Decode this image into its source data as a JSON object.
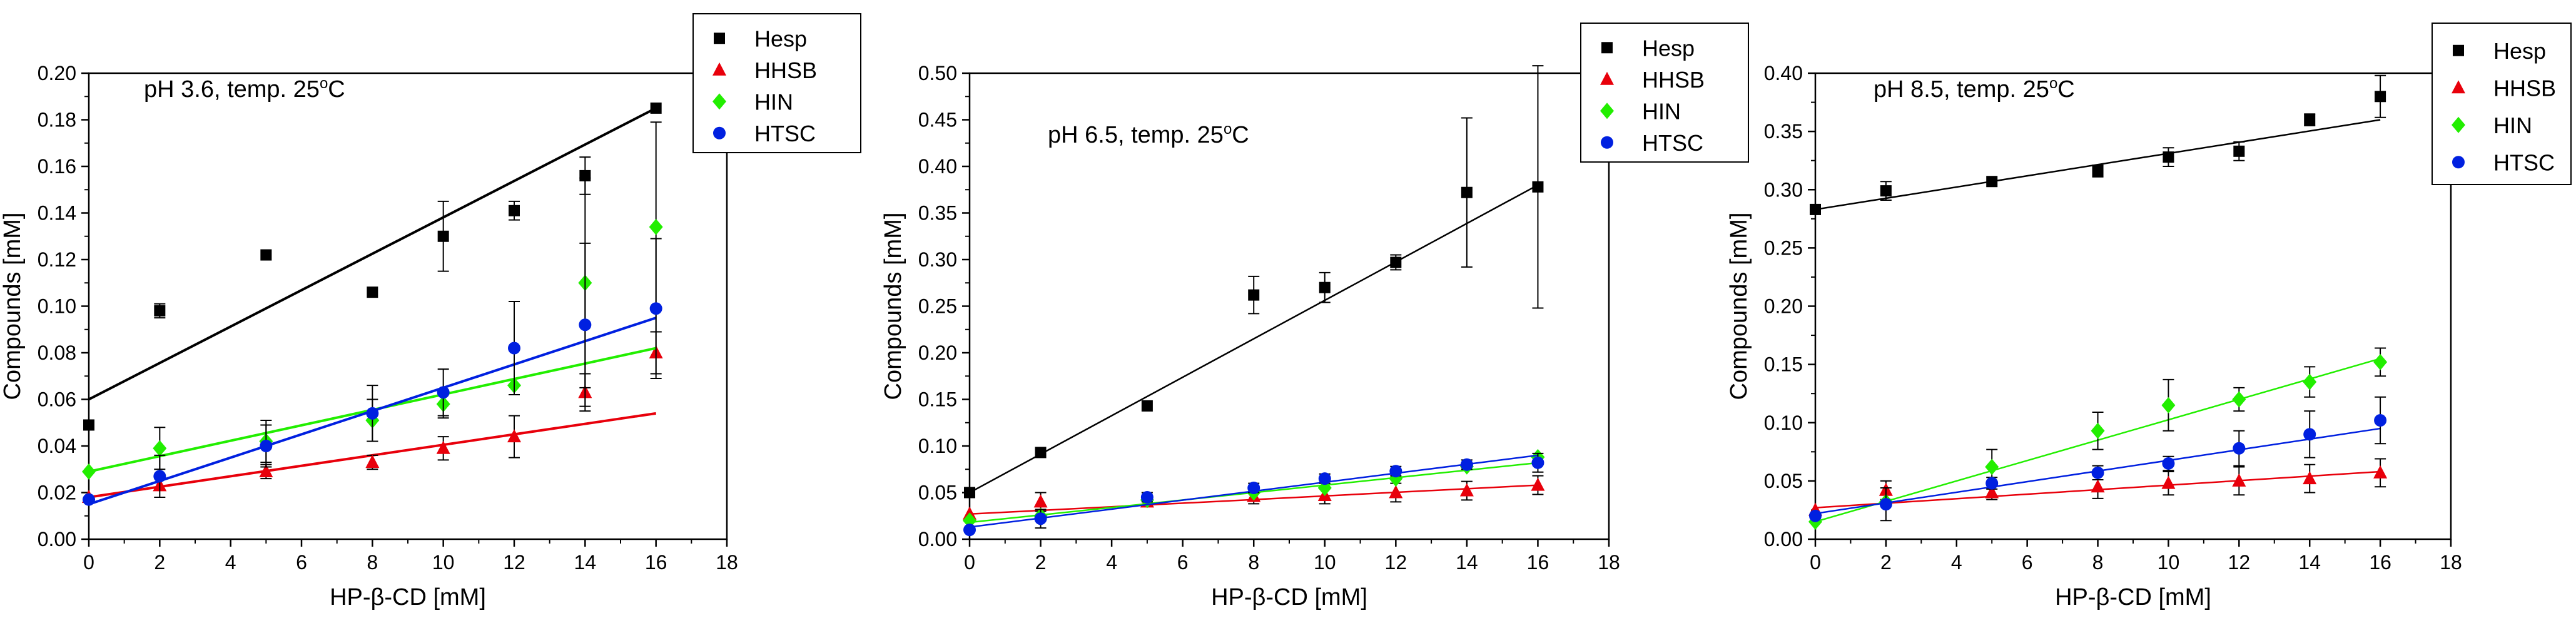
{
  "figure": {
    "colors": {
      "Hesp": "#000000",
      "HHSB": "#e8000b",
      "HIN": "#22ee00",
      "HTSC": "#0020e0"
    }
  },
  "chart_data": [
    {
      "type": "scatter",
      "annotation_main": "pH 3.6, temp. 25",
      "annotation_sup": "o",
      "annotation_unit": "C",
      "xlabel": "HP-β-CD [mM]",
      "ylabel": "Compounds [mM]",
      "xlim": [
        0,
        18
      ],
      "ylim": [
        0,
        0.2
      ],
      "xticks": [
        "0",
        "2",
        "4",
        "6",
        "8",
        "10",
        "12",
        "14",
        "16",
        "18"
      ],
      "yticks": [
        "0.00",
        "0.02",
        "0.04",
        "0.06",
        "0.08",
        "0.10",
        "0.12",
        "0.14",
        "0.16",
        "0.18",
        "0.20"
      ],
      "x": [
        0,
        2,
        5,
        8,
        10,
        12,
        14,
        16
      ],
      "legend_position": "top-right outside",
      "series": [
        {
          "name": "Hesp",
          "marker": "square",
          "values": [
            0.049,
            0.098,
            0.122,
            0.106,
            0.13,
            0.141,
            0.156,
            0.185
          ],
          "errors": [
            0,
            0.003,
            0,
            0,
            0.015,
            0.004,
            0.008,
            0
          ],
          "fit": [
            0.06,
            0.185
          ]
        },
        {
          "name": "HHSB",
          "marker": "triangle",
          "values": [
            0.018,
            0.023,
            0.029,
            0.033,
            0.039,
            0.044,
            0.063,
            0.08
          ],
          "errors": [
            0,
            0,
            0.003,
            0.003,
            0.005,
            0.009,
            0.008,
            0.009
          ],
          "fit": [
            0.018,
            0.054
          ]
        },
        {
          "name": "HIN",
          "marker": "diamond",
          "values": [
            0.029,
            0.039,
            0.042,
            0.051,
            0.058,
            0.066,
            0.11,
            0.134
          ],
          "errors": [
            0,
            0.009,
            0.009,
            0.009,
            0.006,
            0,
            0.045,
            0.045
          ],
          "fit": [
            0.029,
            0.082
          ]
        },
        {
          "name": "HTSC",
          "marker": "circle",
          "values": [
            0.017,
            0.027,
            0.04,
            0.054,
            0.063,
            0.082,
            0.092,
            0.099
          ],
          "errors": [
            0,
            0.009,
            0.009,
            0.012,
            0.01,
            0.02,
            0.035,
            0.03
          ],
          "fit": [
            0.015,
            0.095
          ]
        }
      ]
    },
    {
      "type": "scatter",
      "annotation_main": "pH 6.5, temp. 25",
      "annotation_sup": "o",
      "annotation_unit": "C",
      "xlabel": "HP-β-CD [mM]",
      "ylabel": "Compounds [mM]",
      "xlim": [
        0,
        18
      ],
      "ylim": [
        0,
        0.5
      ],
      "xticks": [
        "0",
        "2",
        "4",
        "6",
        "8",
        "10",
        "12",
        "14",
        "16",
        "18"
      ],
      "yticks": [
        "0.00",
        "0.05",
        "0.10",
        "0.15",
        "0.20",
        "0.25",
        "0.30",
        "0.35",
        "0.40",
        "0.45",
        "0.50"
      ],
      "x": [
        0,
        2,
        5,
        8,
        10,
        12,
        14,
        16
      ],
      "legend_position": "top-right outside",
      "series": [
        {
          "name": "Hesp",
          "marker": "square",
          "values": [
            0.05,
            0.093,
            0.143,
            0.262,
            0.27,
            0.297,
            0.372,
            0.378
          ],
          "errors": [
            0,
            0,
            0,
            0.02,
            0.016,
            0.008,
            0.08,
            0.13
          ],
          "fit": [
            0.05,
            0.38
          ]
        },
        {
          "name": "HHSB",
          "marker": "triangle",
          "values": [
            0.027,
            0.04,
            0.04,
            0.046,
            0.047,
            0.05,
            0.052,
            0.058
          ],
          "errors": [
            0,
            0.01,
            0,
            0.008,
            0.009,
            0.01,
            0.01,
            0.01
          ],
          "fit": [
            0.027,
            0.058
          ]
        },
        {
          "name": "HIN",
          "marker": "diamond",
          "values": [
            0.02,
            0.025,
            0.042,
            0.05,
            0.055,
            0.065,
            0.078,
            0.088
          ],
          "errors": [
            0,
            0,
            0,
            0,
            0,
            0,
            0,
            0
          ],
          "fit": [
            0.018,
            0.082
          ]
        },
        {
          "name": "HTSC",
          "marker": "circle",
          "values": [
            0.01,
            0.022,
            0.045,
            0.055,
            0.065,
            0.073,
            0.08,
            0.082
          ],
          "errors": [
            0,
            0.01,
            0.005,
            0.005,
            0.005,
            0.005,
            0.005,
            0.01
          ],
          "fit": [
            0.013,
            0.09
          ]
        }
      ]
    },
    {
      "type": "scatter",
      "annotation_main": "pH 8.5, temp. 25",
      "annotation_sup": "o",
      "annotation_unit": "C",
      "xlabel": "HP-β-CD [mM]",
      "ylabel": "Compounds [mM]",
      "xlim": [
        0,
        18
      ],
      "ylim": [
        0,
        0.4
      ],
      "xticks": [
        "0",
        "2",
        "4",
        "6",
        "8",
        "10",
        "12",
        "14",
        "16",
        "18"
      ],
      "yticks": [
        "0.00",
        "0.05",
        "0.10",
        "0.15",
        "0.20",
        "0.25",
        "0.30",
        "0.35",
        "0.40"
      ],
      "x": [
        0,
        2,
        5,
        8,
        10,
        12,
        14,
        16
      ],
      "legend_position": "top-right outside",
      "series": [
        {
          "name": "Hesp",
          "marker": "square",
          "values": [
            0.283,
            0.299,
            0.307,
            0.316,
            0.328,
            0.333,
            0.36,
            0.38
          ],
          "errors": [
            0,
            0.008,
            0,
            0.005,
            0.008,
            0.008,
            0.005,
            0.018
          ],
          "fit": [
            0.283,
            0.36
          ]
        },
        {
          "name": "HHSB",
          "marker": "triangle",
          "values": [
            0.025,
            0.042,
            0.04,
            0.045,
            0.048,
            0.05,
            0.052,
            0.057
          ],
          "errors": [
            0,
            0.008,
            0.006,
            0.01,
            0.01,
            0.012,
            0.012,
            0.012
          ],
          "fit": [
            0.027,
            0.058
          ]
        },
        {
          "name": "HIN",
          "marker": "diamond",
          "values": [
            0.015,
            0.032,
            0.062,
            0.093,
            0.115,
            0.12,
            0.135,
            0.152
          ],
          "errors": [
            0,
            0,
            0.015,
            0.016,
            0.022,
            0.01,
            0.013,
            0.012
          ],
          "fit": [
            0.015,
            0.155
          ]
        },
        {
          "name": "HTSC",
          "marker": "circle",
          "values": [
            0.02,
            0.03,
            0.048,
            0.057,
            0.065,
            0.078,
            0.09,
            0.102
          ],
          "errors": [
            0,
            0.014,
            0.005,
            0.006,
            0.006,
            0.015,
            0.02,
            0.02
          ],
          "fit": [
            0.022,
            0.095
          ]
        }
      ]
    }
  ]
}
